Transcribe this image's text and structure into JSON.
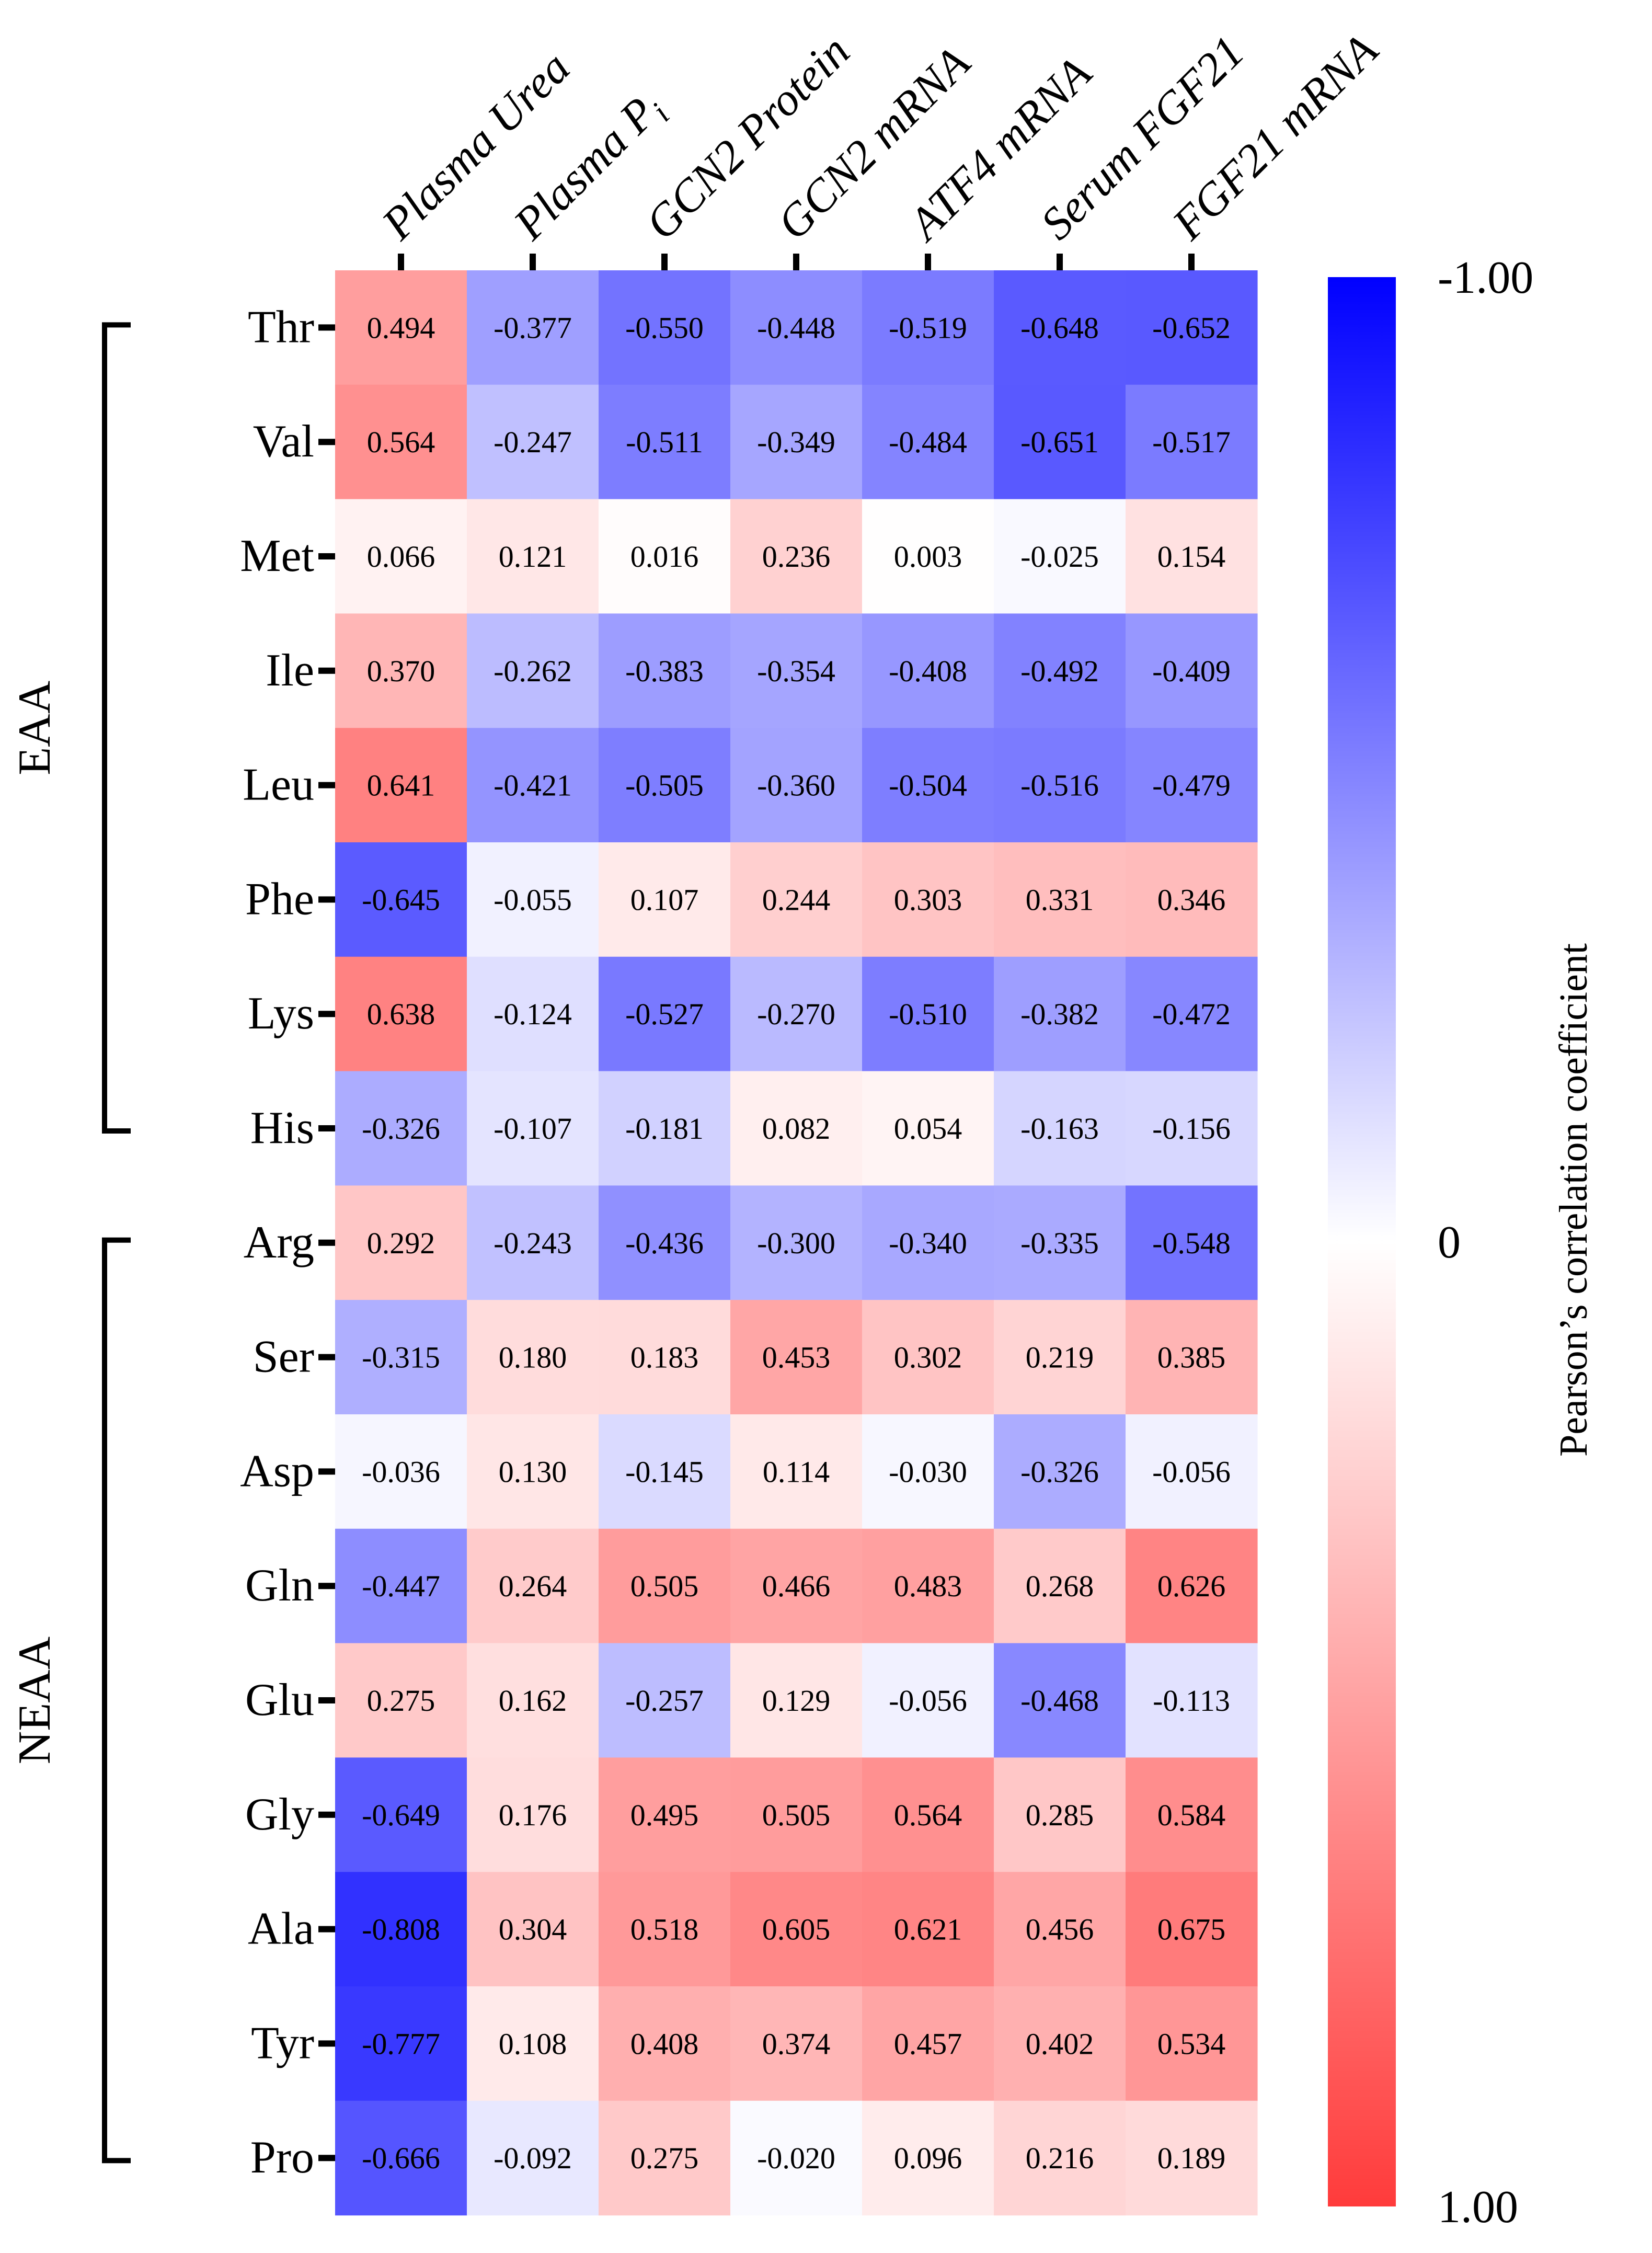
{
  "chart_data": {
    "type": "heatmap",
    "columns": [
      "Plasma Urea",
      "Plasma P",
      "GCN2 Protein",
      "GCN2 mRNA",
      "ATF4 mRNA",
      "Serum FGF21",
      "FGF21 mRNA"
    ],
    "column_subscripts": [
      "",
      "i",
      "",
      "",
      "",
      "",
      ""
    ],
    "rows": [
      "Thr",
      "Val",
      "Met",
      "Ile",
      "Leu",
      "Phe",
      "Lys",
      "His",
      "Arg",
      "Ser",
      "Asp",
      "Gln",
      "Glu",
      "Gly",
      "Ala",
      "Tyr",
      "Pro"
    ],
    "values": [
      [
        0.494,
        -0.377,
        -0.55,
        -0.448,
        -0.519,
        -0.648,
        -0.652
      ],
      [
        0.564,
        -0.247,
        -0.511,
        -0.349,
        -0.484,
        -0.651,
        -0.517
      ],
      [
        0.066,
        0.121,
        0.016,
        0.236,
        0.003,
        -0.025,
        0.154
      ],
      [
        0.37,
        -0.262,
        -0.383,
        -0.354,
        -0.408,
        -0.492,
        -0.409
      ],
      [
        0.641,
        -0.421,
        -0.505,
        -0.36,
        -0.504,
        -0.516,
        -0.479
      ],
      [
        -0.645,
        -0.055,
        0.107,
        0.244,
        0.303,
        0.331,
        0.346
      ],
      [
        0.638,
        -0.124,
        -0.527,
        -0.27,
        -0.51,
        -0.382,
        -0.472
      ],
      [
        -0.326,
        -0.107,
        -0.181,
        0.082,
        0.054,
        -0.163,
        -0.156
      ],
      [
        0.292,
        -0.243,
        -0.436,
        -0.3,
        -0.34,
        -0.335,
        -0.548
      ],
      [
        -0.315,
        0.18,
        0.183,
        0.453,
        0.302,
        0.219,
        0.385
      ],
      [
        -0.036,
        0.13,
        -0.145,
        0.114,
        -0.03,
        -0.326,
        -0.056
      ],
      [
        -0.447,
        0.264,
        0.505,
        0.466,
        0.483,
        0.268,
        0.626
      ],
      [
        0.275,
        0.162,
        -0.257,
        0.129,
        -0.056,
        -0.468,
        -0.113
      ],
      [
        -0.649,
        0.176,
        0.495,
        0.505,
        0.564,
        0.285,
        0.584
      ],
      [
        -0.808,
        0.304,
        0.518,
        0.605,
        0.621,
        0.456,
        0.675
      ],
      [
        -0.777,
        0.108,
        0.408,
        0.374,
        0.457,
        0.402,
        0.534
      ],
      [
        -0.666,
        -0.092,
        0.275,
        -0.02,
        0.096,
        0.216,
        0.189
      ]
    ],
    "value_labels": [
      [
        "0.494",
        "-0.377",
        "-0.550",
        "-0.448",
        "-0.519",
        "-0.648",
        "-0.652"
      ],
      [
        "0.564",
        "-0.247",
        "-0.511",
        "-0.349",
        "-0.484",
        "-0.651",
        "-0.517"
      ],
      [
        "0.066",
        "0.121",
        "0.016",
        "0.236",
        "0.003",
        "-0.025",
        "0.154"
      ],
      [
        "0.370",
        "-0.262",
        "-0.383",
        "-0.354",
        "-0.408",
        "-0.492",
        "-0.409"
      ],
      [
        "0.641",
        "-0.421",
        "-0.505",
        "-0.360",
        "-0.504",
        "-0.516",
        "-0.479"
      ],
      [
        "-0.645",
        "-0.055",
        "0.107",
        "0.244",
        "0.303",
        "0.331",
        "0.346"
      ],
      [
        "0.638",
        "-0.124",
        "-0.527",
        "-0.270",
        "-0.510",
        "-0.382",
        "-0.472"
      ],
      [
        "-0.326",
        "-0.107",
        "-0.181",
        "0.082",
        "0.054",
        "-0.163",
        "-0.156"
      ],
      [
        "0.292",
        "-0.243",
        "-0.436",
        "-0.300",
        "-0.340",
        "-0.335",
        "-0.548"
      ],
      [
        "-0.315",
        "0.180",
        "0.183",
        "0.453",
        "0.302",
        "0.219",
        "0.385"
      ],
      [
        "-0.036",
        "0.130",
        "-0.145",
        "0.114",
        "-0.030",
        "-0.326",
        "-0.056"
      ],
      [
        "-0.447",
        "0.264",
        "0.505",
        "0.466",
        "0.483",
        "0.268",
        "0.626"
      ],
      [
        "0.275",
        "0.162",
        "-0.257",
        "0.129",
        "-0.056",
        "-0.468",
        "-0.113"
      ],
      [
        "-0.649",
        "0.176",
        "0.495",
        "0.505",
        "0.564",
        "0.285",
        "0.584"
      ],
      [
        "-0.808",
        "0.304",
        "0.518",
        "0.605",
        "0.621",
        "0.456",
        "0.675"
      ],
      [
        "-0.777",
        "0.108",
        "0.408",
        "0.374",
        "0.457",
        "0.402",
        "0.534"
      ],
      [
        "-0.666",
        "-0.092",
        "0.275",
        "-0.020",
        "0.096",
        "0.216",
        "0.189"
      ]
    ],
    "groups": [
      {
        "label": "EAA",
        "rows": [
          "Thr",
          "Val",
          "Met",
          "Ile",
          "Leu",
          "Phe",
          "Lys",
          "His"
        ]
      },
      {
        "label": "NEAA",
        "rows": [
          "Arg",
          "Ser",
          "Asp",
          "Gln",
          "Glu",
          "Gly",
          "Ala",
          "Tyr",
          "Pro"
        ]
      }
    ],
    "colorbar": {
      "title": "Pearson’s correlation coefficient",
      "ticks": [
        {
          "value": -1.0,
          "label": "-1.00"
        },
        {
          "value": 0,
          "label": "0"
        },
        {
          "value": 1.0,
          "label": "1.00"
        }
      ],
      "range": [
        -1.0,
        1.0
      ],
      "color_min": "#0000ff",
      "color_mid": "#ffffff",
      "color_max": "#ff3b3b"
    }
  }
}
